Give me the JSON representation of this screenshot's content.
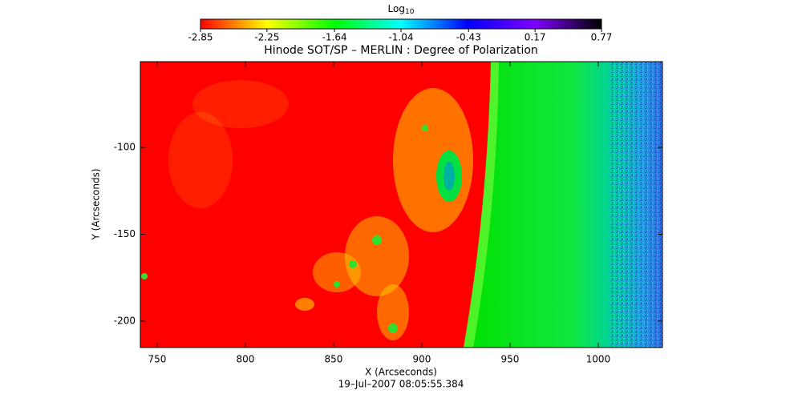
{
  "chart_data": {
    "type": "image",
    "title": "Hinode SOT/SP – MERLIN : Degree of Polarization",
    "x_label": "X (Arcseconds)",
    "y_label": "Y (Arcseconds)",
    "date": "19–Jul–2007 08:05:55.384",
    "xlim": [
      740.5,
      1036.4
    ],
    "xticks": [
      750,
      800,
      850,
      900,
      950,
      1000
    ],
    "ylim": [
      -215.2,
      -50.7
    ],
    "yticks": [
      -100,
      -150,
      -200
    ],
    "colorbar": {
      "label": "Log",
      "label_subscript": "10",
      "clim": [
        -2.85,
        0.77
      ],
      "ticks": [
        -2.85,
        -2.25,
        -1.64,
        -1.04,
        -0.43,
        0.17,
        0.77
      ],
      "colormap": [
        "#ff0000",
        "#ffff00",
        "#00ff00",
        "#00ffff",
        "#0000ff",
        "#7f00ff",
        "#000000"
      ]
    }
  }
}
